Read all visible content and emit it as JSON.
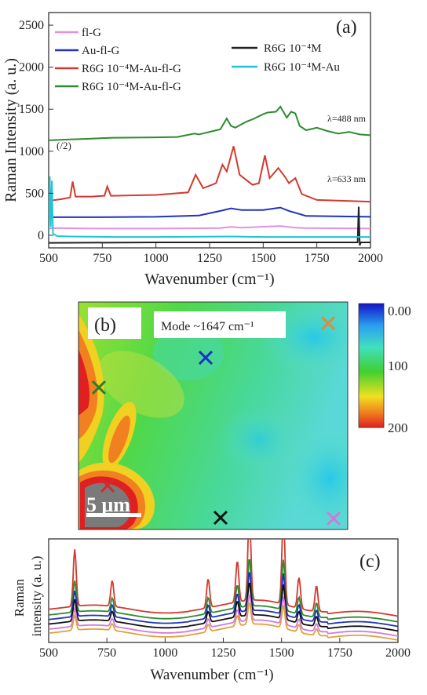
{
  "chart_data": [
    {
      "type": "line",
      "panel_label": "(a)",
      "xlabel": "Wavenumber (cm⁻¹)",
      "ylabel": "Raman Intensity (a. u.)",
      "xlim": [
        500,
        2000
      ],
      "ylim": [
        -150,
        2650
      ],
      "xticks": [
        "500",
        "750",
        "1000",
        "1250",
        "1500",
        "1750",
        "2000"
      ],
      "yticks": [
        "0",
        "500",
        "1000",
        "1500",
        "2000",
        "2500"
      ],
      "legend_left": [
        {
          "name": "fl-G",
          "color": "#e58fe0"
        },
        {
          "name": "Au-fl-G",
          "color": "#2233bb"
        },
        {
          "name": "R6G 10⁻⁴M-Au-fl-G",
          "color": "#d23a2f"
        },
        {
          "name": "R6G 10⁻⁴M-Au-fl-G",
          "color": "#2e8b2e"
        }
      ],
      "legend_right": [
        {
          "name": "R6G 10⁻⁴M",
          "color": "#222222"
        },
        {
          "name": "R6G 10⁻⁴M-Au",
          "color": "#22c4d4"
        }
      ],
      "annotations": [
        "λ=488 nm",
        "λ=633 nm",
        "(/2)"
      ],
      "series": [
        {
          "name": "fl-G",
          "color": "#e58fe0",
          "x": [
            500,
            520,
            700,
            1000,
            1300,
            1350,
            1400,
            1580,
            1650,
            1700,
            2000
          ],
          "y": [
            80,
            85,
            80,
            80,
            85,
            100,
            90,
            110,
            90,
            85,
            80
          ]
        },
        {
          "name": "Au-fl-G",
          "color": "#2233bb",
          "x": [
            500,
            520,
            700,
            1000,
            1200,
            1300,
            1350,
            1400,
            1500,
            1580,
            1620,
            1700,
            2000
          ],
          "y": [
            210,
            215,
            215,
            220,
            235,
            290,
            320,
            300,
            300,
            330,
            290,
            230,
            220
          ]
        },
        {
          "name": "R6G 10⁻⁴M-Au-fl-G (λ=633 nm, /2)",
          "color": "#d23a2f",
          "x": [
            500,
            560,
            600,
            612,
            625,
            700,
            760,
            773,
            790,
            1000,
            1150,
            1185,
            1220,
            1280,
            1310,
            1330,
            1362,
            1390,
            1450,
            1480,
            1508,
            1530,
            1570,
            1600,
            1620,
            1650,
            1680,
            1750,
            2000
          ],
          "y": [
            410,
            430,
            450,
            640,
            460,
            460,
            470,
            580,
            470,
            480,
            510,
            720,
            560,
            620,
            840,
            760,
            1060,
            720,
            600,
            620,
            950,
            680,
            800,
            700,
            620,
            680,
            490,
            420,
            400
          ]
        },
        {
          "name": "R6G 10⁻⁴M-Au-fl-G (λ=488 nm)",
          "color": "#2e8b2e",
          "x": [
            500,
            600,
            700,
            800,
            1000,
            1100,
            1180,
            1200,
            1250,
            1300,
            1330,
            1350,
            1370,
            1420,
            1450,
            1500,
            1520,
            1560,
            1580,
            1610,
            1630,
            1650,
            1670,
            1700,
            1750,
            1800,
            1850,
            1900,
            1950,
            2000
          ],
          "y": [
            1130,
            1140,
            1150,
            1160,
            1165,
            1170,
            1210,
            1200,
            1230,
            1260,
            1390,
            1300,
            1280,
            1350,
            1380,
            1440,
            1460,
            1470,
            1530,
            1400,
            1470,
            1450,
            1300,
            1250,
            1280,
            1240,
            1210,
            1230,
            1200,
            1190
          ]
        },
        {
          "name": "R6G 10⁻⁴M",
          "color": "#222222",
          "x": [
            500,
            1000,
            1500,
            1940,
            1945,
            1950,
            1955,
            2000
          ],
          "y": [
            -90,
            -85,
            -85,
            -85,
            340,
            -120,
            -85,
            -85
          ]
        },
        {
          "name": "R6G 10⁻⁴M-Au",
          "color": "#22c4d4",
          "x": [
            500,
            505,
            510,
            515,
            520,
            540,
            600,
            800,
            1000,
            1350,
            1500,
            2000
          ],
          "y": [
            -20,
            700,
            100,
            650,
            20,
            -10,
            -15,
            -20,
            -20,
            -15,
            -20,
            -20
          ]
        }
      ]
    },
    {
      "type": "heatmap",
      "panel_label": "(b)",
      "mode_label": "Mode  ~1647 cm⁻¹",
      "scalebar_label": "5 μm",
      "colorbar_ticks": [
        "0.00",
        "100",
        "200"
      ],
      "colorbar_range": [
        0,
        200
      ],
      "markers": [
        {
          "name": "orange",
          "color": "#e08a3a"
        },
        {
          "name": "blue",
          "color": "#1a2fc8"
        },
        {
          "name": "green",
          "color": "#2e7a2e"
        },
        {
          "name": "red",
          "color": "#d42a2a"
        },
        {
          "name": "black",
          "color": "#111111"
        },
        {
          "name": "violet",
          "color": "#d07ad8"
        }
      ]
    },
    {
      "type": "line",
      "panel_label": "(c)",
      "xlabel": "Wavenumber (cm⁻¹)",
      "ylabel": "Raman intensity (a. u.)",
      "xlim": [
        500,
        2000
      ],
      "xticks": [
        "500",
        "750",
        "1000",
        "1250",
        "1500",
        "1750",
        "2000"
      ],
      "peaks_x": [
        612,
        773,
        1185,
        1310,
        1362,
        1508,
        1575,
        1650
      ],
      "series": [
        {
          "color": "#d23a2f",
          "baseline": 0.62,
          "scale": 1.0
        },
        {
          "color": "#2e8b2e",
          "baseline": 0.52,
          "scale": 0.55
        },
        {
          "color": "#2233bb",
          "baseline": 0.44,
          "scale": 0.45
        },
        {
          "color": "#111111",
          "baseline": 0.36,
          "scale": 0.38
        },
        {
          "color": "#d07ad8",
          "baseline": 0.27,
          "scale": 0.3
        },
        {
          "color": "#e0a040",
          "baseline": 0.2,
          "scale": 0.25
        }
      ]
    }
  ]
}
